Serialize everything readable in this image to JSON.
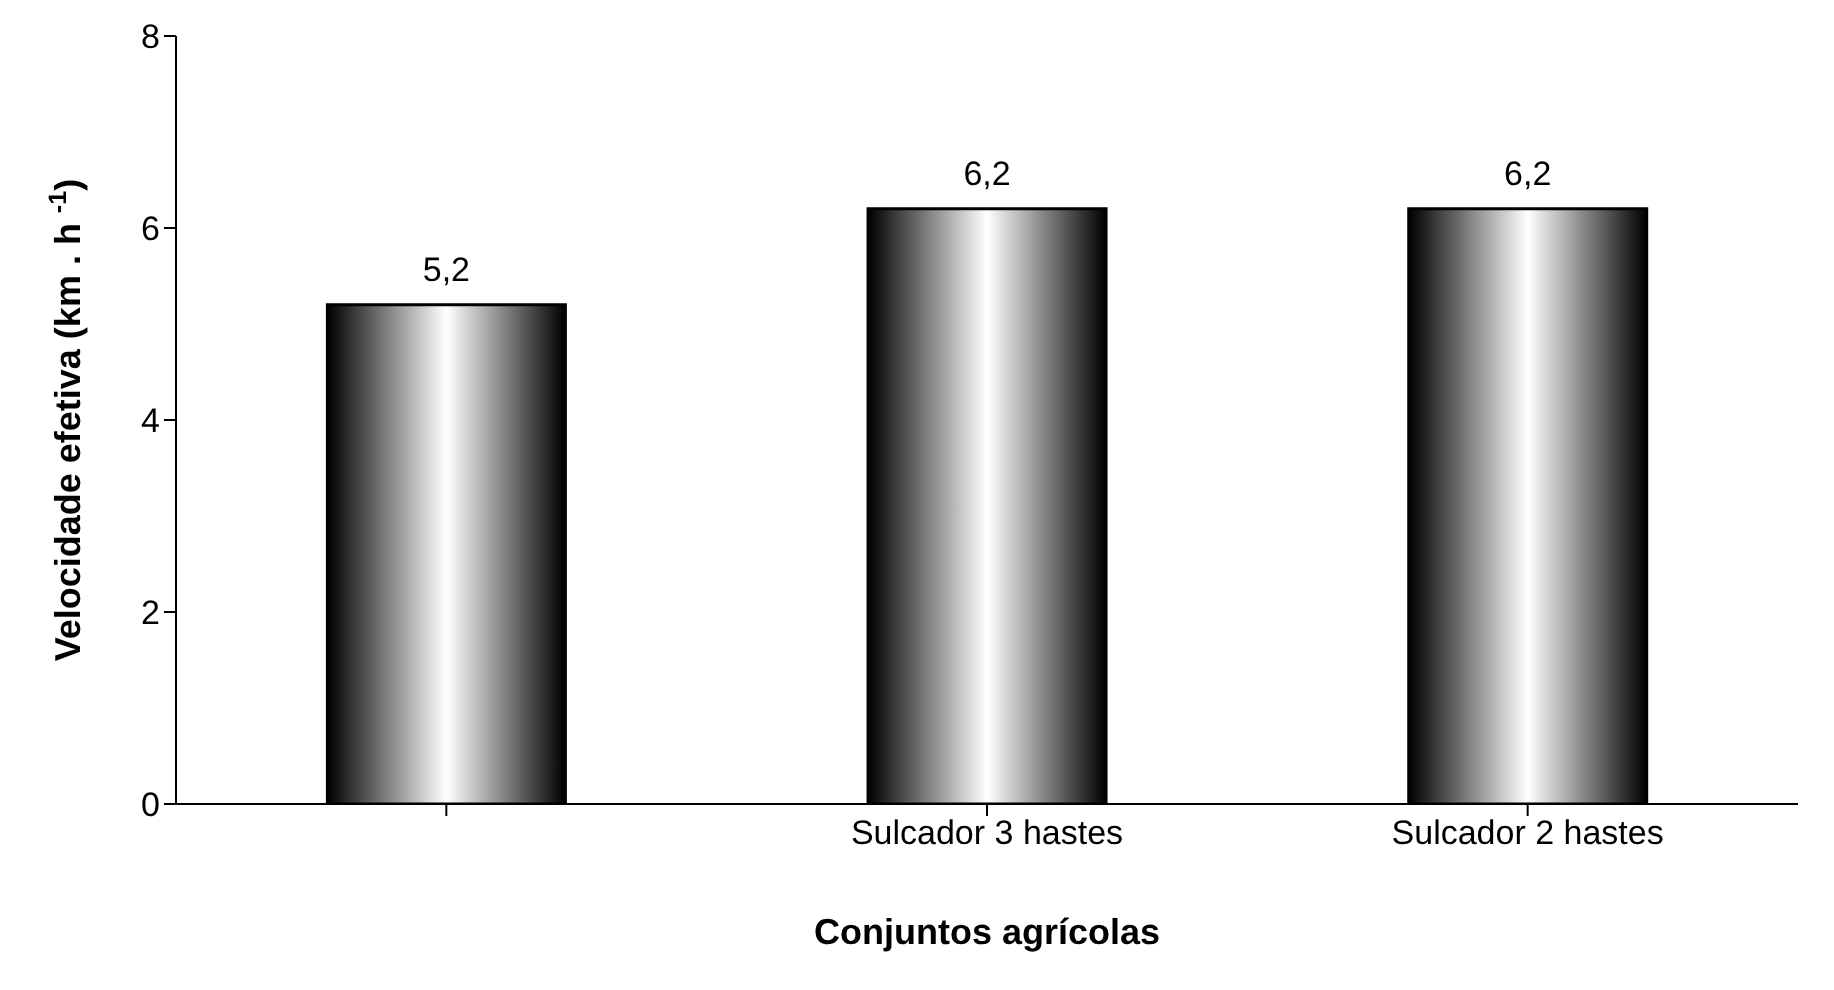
{
  "chart_data": {
    "type": "bar",
    "xlabel": "Conjuntos agrícolas",
    "ylabel": "Velocidade efetiva (km . h $^{-1}$)",
    "categories": [
      null,
      "Sulcador 3 hastes",
      "Sulcador 2 hastes"
    ],
    "values": [
      5.2,
      6.2,
      6.2
    ],
    "colors": [
      "#000000",
      "#000000",
      "#000000"
    ],
    "value_labels": [
      "5,2",
      "6,2",
      "6,2"
    ],
    "ylim": [
      0,
      8
    ],
    "yticks": [
      0,
      2,
      4,
      6,
      8
    ],
    "grid": false,
    "legend": false
  }
}
